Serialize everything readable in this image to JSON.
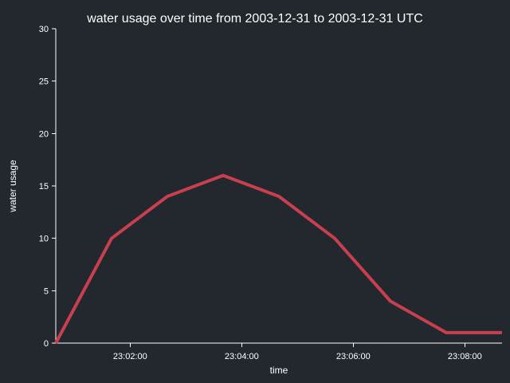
{
  "chart_data": {
    "type": "line",
    "title": "water usage over time from 2003-12-31 to 2003-12-31 UTC",
    "xlabel": "time",
    "ylabel": "water usage",
    "x_ticks": [
      "23:02:00",
      "23:04:00",
      "23:06:00",
      "23:08:00"
    ],
    "y_ticks": [
      0,
      5,
      10,
      15,
      20,
      25,
      30
    ],
    "ylim": [
      0,
      30
    ],
    "xlim": [
      "23:00:40",
      "23:08:40"
    ],
    "grid": false,
    "series": [
      {
        "x": [
          "23:00:40",
          "23:01:40",
          "23:02:40",
          "23:03:40",
          "23:04:40",
          "23:05:40",
          "23:06:40",
          "23:07:40",
          "23:08:40"
        ],
        "values": [
          0,
          10,
          14,
          16,
          14,
          10,
          4,
          1,
          1
        ],
        "color": "#c8404f"
      }
    ]
  }
}
